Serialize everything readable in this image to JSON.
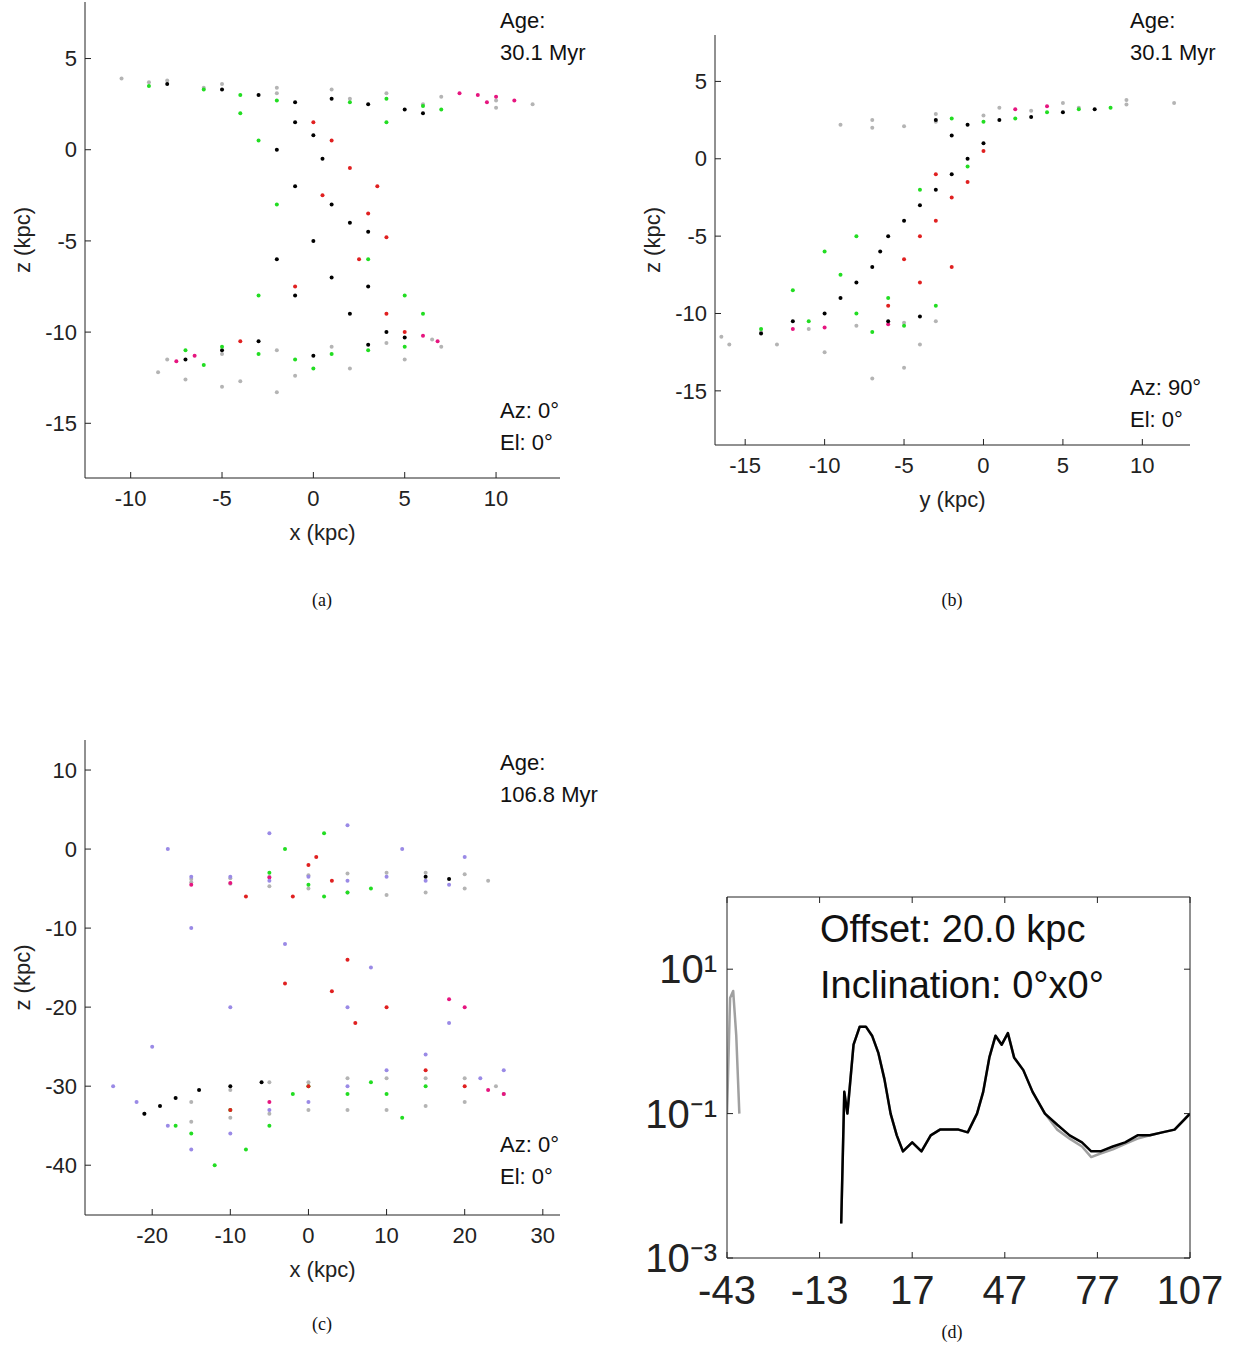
{
  "chart_data": [
    {
      "type": "scatter",
      "caption": "(a)",
      "x_label": "x (kpc)",
      "y_label": "z (kpc)",
      "xlim": [
        -12.5,
        13.5
      ],
      "ylim": [
        -18,
        8.1
      ],
      "xticks": [
        -10,
        -5,
        0,
        5,
        10
      ],
      "yticks": [
        -15,
        -10,
        -5,
        0,
        5
      ],
      "annotations": [
        "Age:",
        "30.1 Myr",
        "Az: 0°",
        "El: 0°"
      ],
      "series": [
        {
          "color": "#b4b4b4",
          "x": [
            -10.5,
            -8,
            -5,
            -2,
            1,
            4,
            7,
            10,
            12,
            10,
            6,
            2,
            -2,
            -6,
            -9,
            -8,
            -5,
            -2,
            1,
            4,
            6.5,
            7,
            5,
            2,
            -1,
            -4,
            -7,
            -8.5,
            -5,
            -2
          ],
          "values": [
            3.9,
            3.8,
            3.6,
            3.4,
            3.3,
            3.1,
            2.9,
            2.7,
            2.5,
            2.3,
            2.5,
            2.8,
            3.1,
            3.4,
            3.7,
            -11.5,
            -11.2,
            -11,
            -10.8,
            -10.6,
            -10.4,
            -10.8,
            -11.5,
            -12,
            -12.4,
            -12.7,
            -12.6,
            -12.2,
            -13,
            -13.3
          ]
        },
        {
          "color": "#e6157f",
          "x": [
            8,
            9,
            10,
            11,
            9.5,
            -7.5,
            -6.5,
            6,
            6.8
          ],
          "values": [
            3.1,
            3.0,
            2.9,
            2.7,
            2.6,
            -11.6,
            -11.3,
            -10.2,
            -10.5
          ]
        },
        {
          "color": "#000000",
          "x": [
            -8,
            -5,
            -3,
            -1,
            1,
            3,
            5,
            6,
            -1,
            0,
            -2,
            0.5,
            -1,
            1,
            2,
            3,
            0,
            -2,
            1,
            3,
            -1,
            2,
            4,
            5,
            -3,
            -5,
            -7,
            0,
            3
          ],
          "values": [
            3.6,
            3.3,
            3.0,
            2.6,
            2.8,
            2.5,
            2.2,
            2.0,
            1.5,
            0.8,
            0,
            -0.5,
            -2,
            -3,
            -4,
            -4.5,
            -5,
            -6,
            -7,
            -7.5,
            -8,
            -9,
            -10,
            -10.3,
            -10.5,
            -11,
            -11.5,
            -11.3,
            -10.7
          ]
        },
        {
          "color": "#22dd22",
          "x": [
            -9,
            -6,
            -4,
            -2,
            2,
            4,
            6,
            7,
            -4,
            -3,
            4,
            -2,
            3,
            -3,
            5,
            6,
            -5,
            -7,
            -3,
            -1,
            1,
            3,
            5,
            -6,
            0
          ],
          "values": [
            3.5,
            3.3,
            3.0,
            2.7,
            2.6,
            2.8,
            2.4,
            2.2,
            2,
            0.5,
            1.5,
            -3,
            -6,
            -8,
            -8,
            -9,
            -10.8,
            -11,
            -11.2,
            -11.5,
            -11.2,
            -11,
            -10.8,
            -11.8,
            -12
          ]
        },
        {
          "color": "#e02020",
          "x": [
            1,
            2,
            0.5,
            3,
            4,
            2.5,
            -1,
            4,
            5,
            -4,
            0,
            3.5
          ],
          "values": [
            0.5,
            -1,
            -2.5,
            -3.5,
            -4.8,
            -6,
            -7.5,
            -9,
            -10,
            -10.5,
            1.5,
            -2
          ]
        }
      ]
    },
    {
      "type": "scatter",
      "caption": "(b)",
      "x_label": "y (kpc)",
      "y_label": "z (kpc)",
      "xlim": [
        -16.9,
        13
      ],
      "ylim": [
        -18.5,
        8
      ],
      "xticks": [
        -15,
        -10,
        -5,
        0,
        5,
        10
      ],
      "yticks": [
        -15,
        -10,
        -5,
        0,
        5
      ],
      "annotations": [
        "Age:",
        "30.1 Myr",
        "Az: 90°",
        "El: 0°"
      ],
      "series": [
        {
          "color": "#b4b4b4",
          "x": [
            -9,
            -7,
            -5,
            -3,
            0,
            3,
            6,
            9,
            12,
            9,
            5,
            1,
            -3,
            -7,
            -16.5,
            -14,
            -11,
            -8,
            -5,
            -3,
            -4,
            -5,
            -7,
            -10,
            -13,
            -16
          ],
          "values": [
            2.2,
            2,
            2.1,
            2.4,
            2.8,
            3.1,
            3.3,
            3.5,
            3.6,
            3.8,
            3.6,
            3.3,
            2.9,
            2.5,
            -11.5,
            -11.2,
            -11,
            -10.8,
            -10.6,
            -10.5,
            -12,
            -13.5,
            -14.2,
            -12.5,
            -12,
            -12
          ]
        },
        {
          "color": "#e6157f",
          "x": [
            2,
            4,
            -12,
            -10,
            -6
          ],
          "values": [
            3.2,
            3.4,
            -11,
            -10.9,
            -10.7
          ]
        },
        {
          "color": "#000000",
          "x": [
            -3,
            -1,
            1,
            3,
            5,
            7,
            -2,
            0,
            -1,
            -2,
            -3,
            -4,
            -5,
            -6,
            -6.5,
            -7,
            -8,
            -9,
            -10,
            -12,
            -14,
            -6,
            -4
          ],
          "values": [
            2.5,
            2.2,
            2.5,
            2.7,
            3,
            3.2,
            1.5,
            1,
            0,
            -1,
            -2,
            -3,
            -4,
            -5,
            -6,
            -7,
            -8,
            -9,
            -10,
            -10.5,
            -11.3,
            -10.5,
            -10.2
          ]
        },
        {
          "color": "#22dd22",
          "x": [
            -2,
            0,
            2,
            4,
            6,
            8,
            -1,
            -4,
            -8,
            -10,
            -9,
            -12,
            -6,
            -8,
            -11,
            -14,
            -5,
            -3,
            -7
          ],
          "values": [
            2.6,
            2.4,
            2.6,
            3,
            3.2,
            3.3,
            -0.5,
            -2,
            -5,
            -6,
            -7.5,
            -8.5,
            -9,
            -10,
            -10.5,
            -11,
            -10.8,
            -9.5,
            -11.2
          ]
        },
        {
          "color": "#e02020",
          "x": [
            0,
            -1,
            -2,
            -3,
            -4,
            -5,
            -4,
            -6,
            -2,
            -3
          ],
          "values": [
            0.5,
            -1.5,
            -2.5,
            -4,
            -5,
            -6.5,
            -8,
            -9.5,
            -7,
            -1
          ]
        }
      ]
    },
    {
      "type": "scatter",
      "caption": "(c)",
      "x_label": "x (kpc)",
      "y_label": "z (kpc)",
      "xlim": [
        -28.6,
        32.2
      ],
      "ylim": [
        -46.3,
        13.8
      ],
      "xticks": [
        -20,
        -10,
        0,
        10,
        20,
        30
      ],
      "yticks": [
        -40,
        -30,
        -20,
        -10,
        0,
        10
      ],
      "annotations": [
        "Age:",
        "106.8 Myr",
        "Az: 0°",
        "El: 0°"
      ],
      "series": [
        {
          "color": "#b4b4b4",
          "x": [
            -15,
            -10,
            -5,
            0,
            5,
            10,
            15,
            20,
            23,
            20,
            15,
            10,
            5,
            0,
            -5,
            -10,
            -15,
            -21,
            -15,
            -10,
            -5,
            0,
            5,
            10,
            15,
            20,
            24,
            25,
            20,
            15,
            10,
            5,
            0,
            -5,
            -10,
            -15
          ],
          "values": [
            -3.8,
            -3.7,
            -3.5,
            -3.3,
            -3.1,
            -3,
            -3,
            -3.2,
            -4,
            -5,
            -5.5,
            -5.8,
            -5.5,
            -5,
            -4.7,
            -4.4,
            -4.2,
            -33.5,
            -32,
            -30.5,
            -29.5,
            -29.5,
            -29,
            -29,
            -29,
            -29,
            -30,
            -31,
            -32,
            -32.5,
            -33,
            -33,
            -33,
            -33.5,
            -34,
            -34.5
          ]
        },
        {
          "color": "#e6157f",
          "x": [
            -15,
            -10,
            -5,
            23,
            25,
            -5,
            18,
            20
          ],
          "values": [
            -4.5,
            -4.3,
            -3.6,
            -30.5,
            -31,
            -32,
            -19,
            -20
          ]
        },
        {
          "color": "#000000",
          "x": [
            -21,
            -19,
            -17,
            -14,
            -10,
            -6,
            15,
            18
          ],
          "values": [
            -33.5,
            -32.5,
            -31.5,
            -30.5,
            -30,
            -29.5,
            -3.5,
            -3.8
          ]
        },
        {
          "color": "#22dd22",
          "x": [
            -5,
            0,
            2,
            5,
            8,
            -3,
            2,
            0,
            5,
            8,
            -2,
            -10,
            -15,
            -12,
            -8,
            10,
            15,
            -5,
            12,
            -17
          ],
          "values": [
            -3,
            -4.5,
            -6,
            -5.5,
            -5,
            0,
            2,
            -30,
            -31,
            -29.5,
            -31,
            -33,
            -36,
            -40,
            -38,
            -31,
            -30,
            -35,
            -34,
            -35
          ]
        },
        {
          "color": "#9a8ae6",
          "x": [
            -15,
            -10,
            -5,
            0,
            5,
            10,
            15,
            18,
            -18,
            -5,
            5,
            12,
            20,
            -20,
            -22,
            -18,
            -15,
            -10,
            -5,
            0,
            5,
            10,
            15,
            18,
            22,
            -10,
            5,
            -25,
            25,
            -3,
            8,
            -15
          ],
          "values": [
            -3.5,
            -3.5,
            -4,
            -3.5,
            -4,
            -3.5,
            -4,
            -4.5,
            0,
            2,
            3,
            0,
            -1,
            -25,
            -32,
            -35,
            -38,
            -36,
            -33,
            -32,
            -30,
            -28,
            -26,
            -22,
            -29,
            -20,
            -20,
            -30,
            -28,
            -12,
            -15,
            -10
          ]
        },
        {
          "color": "#e02020",
          "x": [
            0,
            3,
            -2,
            1,
            5,
            3,
            6,
            10,
            -3,
            15,
            20,
            -10,
            0,
            -8
          ],
          "values": [
            -2,
            -4,
            -6,
            -1,
            -14,
            -18,
            -22,
            -20,
            -17,
            -28,
            -30,
            -33,
            -30,
            -6
          ]
        }
      ]
    },
    {
      "type": "line",
      "caption": "(d)",
      "log": "y",
      "xlim": [
        -43,
        107
      ],
      "ylim": [
        0.001,
        100
      ],
      "xticks": [
        -43,
        -13,
        17,
        47,
        77,
        107
      ],
      "yticks": [
        {
          "value": 0.001,
          "label": "10⁻³"
        },
        {
          "value": 0.1,
          "label": "10⁻¹"
        },
        {
          "value": 10,
          "label": "10¹"
        }
      ],
      "annotations": [
        "Offset: 20.0 kpc",
        "Inclination: 0°x0°"
      ],
      "series": [
        {
          "color": "#a0a0a0",
          "x": [
            -43,
            -42,
            -41,
            -40,
            -39,
            -38,
            -6,
            -5,
            -4,
            -3,
            -2,
            0,
            2,
            4,
            6,
            8,
            10,
            12,
            14,
            17,
            20,
            23,
            26,
            29,
            32,
            35,
            38,
            40,
            42,
            44,
            46,
            48,
            50,
            53,
            56,
            60,
            64,
            68,
            72,
            75,
            78,
            82,
            86,
            90,
            94,
            98,
            102,
            107
          ],
          "values": [
            0.1,
            4,
            5,
            1.2,
            0.1,
            null,
            0.003,
            0.2,
            0.1,
            0.3,
            0.9,
            1.6,
            1.6,
            1.2,
            0.7,
            0.3,
            0.1,
            0.05,
            0.03,
            0.04,
            0.03,
            0.05,
            0.06,
            0.06,
            0.06,
            0.055,
            0.1,
            0.2,
            0.6,
            1.2,
            0.9,
            1.3,
            0.6,
            0.4,
            0.2,
            0.1,
            0.06,
            0.045,
            0.035,
            0.025,
            0.028,
            0.032,
            0.038,
            0.045,
            0.05,
            0.055,
            0.06,
            0.1
          ]
        },
        {
          "color": "#000000",
          "x": [
            -6,
            -5,
            -4,
            -3,
            -2,
            0,
            2,
            4,
            6,
            8,
            10,
            12,
            14,
            17,
            20,
            23,
            26,
            29,
            32,
            35,
            38,
            40,
            42,
            44,
            46,
            48,
            50,
            53,
            56,
            60,
            64,
            68,
            72,
            75,
            78,
            82,
            86,
            90,
            94,
            98,
            102,
            107
          ],
          "values": [
            0.003,
            0.2,
            0.1,
            0.3,
            0.9,
            1.6,
            1.6,
            1.2,
            0.7,
            0.3,
            0.1,
            0.05,
            0.03,
            0.04,
            0.03,
            0.05,
            0.06,
            0.06,
            0.06,
            0.055,
            0.1,
            0.2,
            0.6,
            1.2,
            0.9,
            1.3,
            0.6,
            0.4,
            0.2,
            0.1,
            0.07,
            0.05,
            0.04,
            0.03,
            0.03,
            0.035,
            0.04,
            0.05,
            0.05,
            0.055,
            0.06,
            0.1
          ]
        }
      ]
    }
  ]
}
